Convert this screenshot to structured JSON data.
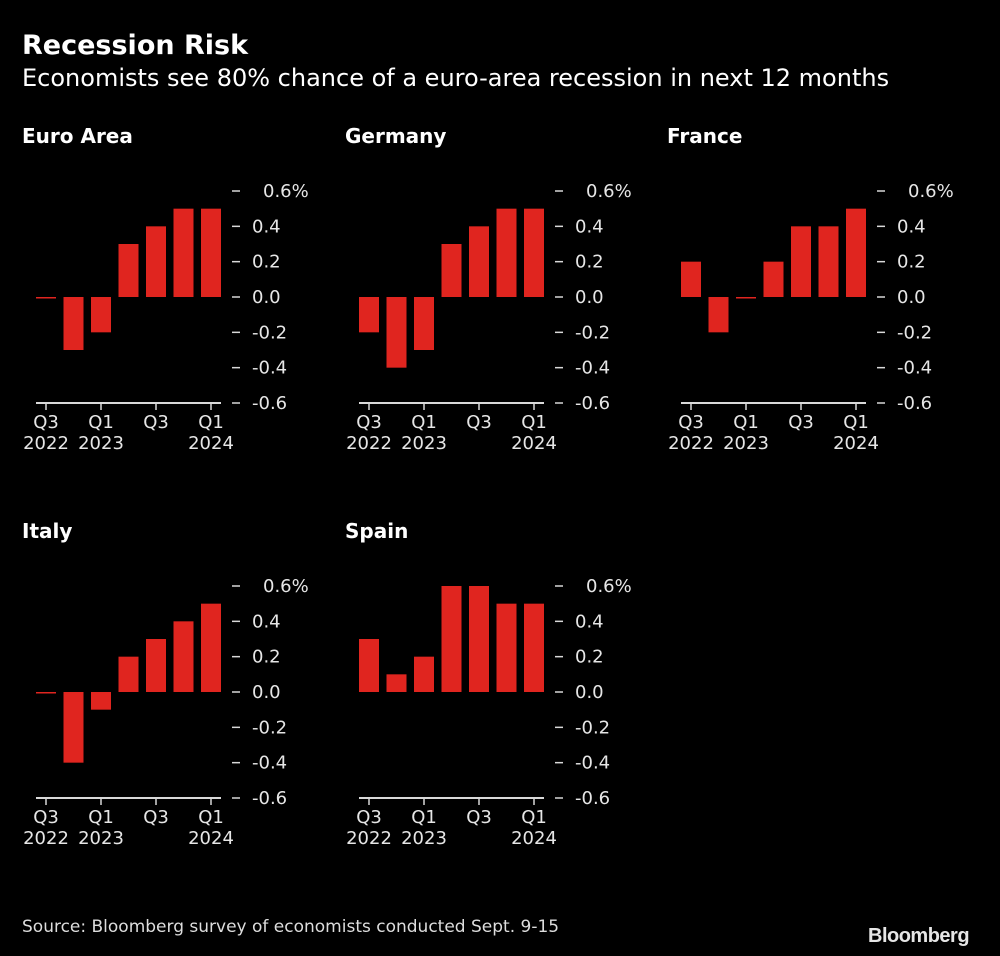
{
  "title": "Recession Risk",
  "subtitle": "Economists see 80% chance of a euro-area recession in next 12 months",
  "source": "Source: Bloomberg survey of economists conducted Sept. 9-15",
  "logo": "Bloomberg",
  "colors": {
    "bar": "#e0251f",
    "background": "#000000",
    "axis": "#d9d9d9"
  },
  "chart_data": [
    {
      "type": "bar",
      "title": "Euro Area",
      "categories": [
        "Q3 2022",
        "Q4 2022",
        "Q1 2023",
        "Q2 2023",
        "Q3 2023",
        "Q4 2023",
        "Q1 2024"
      ],
      "values": [
        0.0,
        -0.3,
        -0.2,
        0.3,
        0.4,
        0.5,
        0.5
      ],
      "ylim": [
        -0.6,
        0.6
      ],
      "yticks": [
        "0.6%",
        "0.4",
        "0.2",
        "0.0",
        "-0.2",
        "-0.4",
        "-0.6"
      ],
      "xticks": [
        [
          "Q3",
          "2022"
        ],
        [
          "Q1",
          "2023"
        ],
        [
          "Q3",
          ""
        ],
        [
          "Q1",
          "2024"
        ]
      ],
      "grid": false
    },
    {
      "type": "bar",
      "title": "Germany",
      "categories": [
        "Q3 2022",
        "Q4 2022",
        "Q1 2023",
        "Q2 2023",
        "Q3 2023",
        "Q4 2023",
        "Q1 2024"
      ],
      "values": [
        -0.2,
        -0.4,
        -0.3,
        0.3,
        0.4,
        0.5,
        0.5
      ],
      "ylim": [
        -0.6,
        0.6
      ],
      "yticks": [
        "0.6%",
        "0.4",
        "0.2",
        "0.0",
        "-0.2",
        "-0.4",
        "-0.6"
      ],
      "xticks": [
        [
          "Q3",
          "2022"
        ],
        [
          "Q1",
          "2023"
        ],
        [
          "Q3",
          ""
        ],
        [
          "Q1",
          "2024"
        ]
      ],
      "grid": false
    },
    {
      "type": "bar",
      "title": "France",
      "categories": [
        "Q3 2022",
        "Q4 2022",
        "Q1 2023",
        "Q2 2023",
        "Q3 2023",
        "Q4 2023",
        "Q1 2024"
      ],
      "values": [
        0.2,
        -0.2,
        0.0,
        0.2,
        0.4,
        0.4,
        0.5
      ],
      "ylim": [
        -0.6,
        0.6
      ],
      "yticks": [
        "0.6%",
        "0.4",
        "0.2",
        "0.0",
        "-0.2",
        "-0.4",
        "-0.6"
      ],
      "xticks": [
        [
          "Q3",
          "2022"
        ],
        [
          "Q1",
          "2023"
        ],
        [
          "Q3",
          ""
        ],
        [
          "Q1",
          "2024"
        ]
      ],
      "grid": false
    },
    {
      "type": "bar",
      "title": "Italy",
      "categories": [
        "Q3 2022",
        "Q4 2022",
        "Q1 2023",
        "Q2 2023",
        "Q3 2023",
        "Q4 2023",
        "Q1 2024"
      ],
      "values": [
        0.0,
        -0.4,
        -0.1,
        0.2,
        0.3,
        0.4,
        0.5
      ],
      "ylim": [
        -0.6,
        0.6
      ],
      "yticks": [
        "0.6%",
        "0.4",
        "0.2",
        "0.0",
        "-0.2",
        "-0.4",
        "-0.6"
      ],
      "xticks": [
        [
          "Q3",
          "2022"
        ],
        [
          "Q1",
          "2023"
        ],
        [
          "Q3",
          ""
        ],
        [
          "Q1",
          "2024"
        ]
      ],
      "grid": false
    },
    {
      "type": "bar",
      "title": "Spain",
      "categories": [
        "Q3 2022",
        "Q4 2022",
        "Q1 2023",
        "Q2 2023",
        "Q3 2023",
        "Q4 2023",
        "Q1 2024"
      ],
      "values": [
        0.3,
        0.1,
        0.2,
        0.6,
        0.6,
        0.5,
        0.5
      ],
      "ylim": [
        -0.6,
        0.6
      ],
      "yticks": [
        "0.6%",
        "0.4",
        "0.2",
        "0.0",
        "-0.2",
        "-0.4",
        "-0.6"
      ],
      "xticks": [
        [
          "Q3",
          "2022"
        ],
        [
          "Q1",
          "2023"
        ],
        [
          "Q3",
          ""
        ],
        [
          "Q1",
          "2024"
        ]
      ],
      "grid": false
    }
  ]
}
